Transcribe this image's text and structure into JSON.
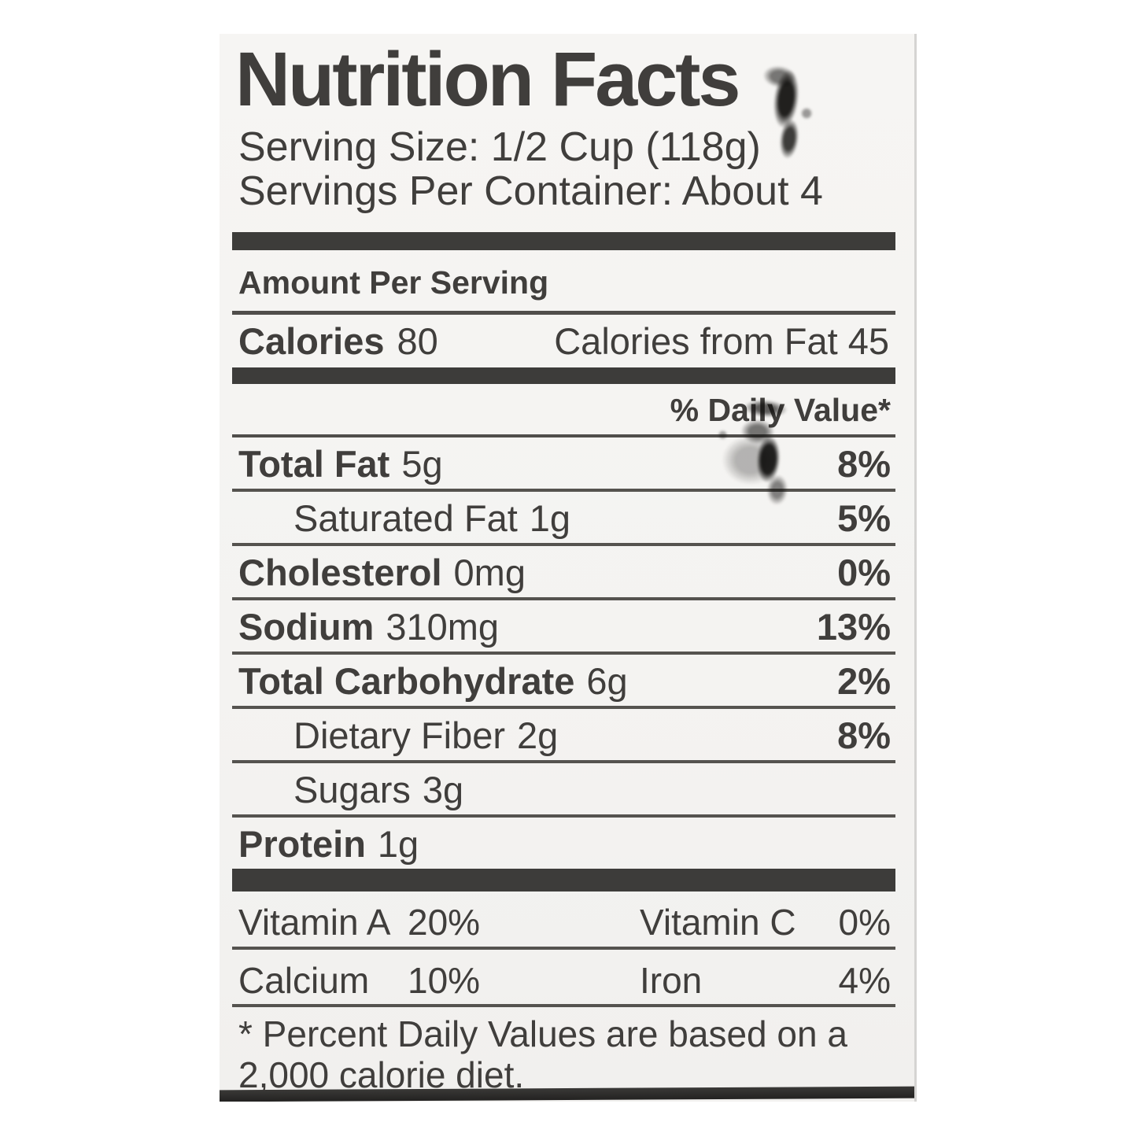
{
  "label": {
    "title": "Nutrition Facts",
    "serving_size": "Serving Size: 1/2 Cup (118g)",
    "servings_per_container": "Servings Per Container: About 4",
    "amount_per_serving": "Amount Per Serving",
    "calories_label": "Calories",
    "calories_value": "80",
    "calories_from_fat": "Calories from Fat 45",
    "daily_value_header": "% Daily Value*",
    "rows": [
      {
        "name": "Total Fat",
        "amount": "5g",
        "dv": "8%"
      },
      {
        "name": "Saturated Fat",
        "amount": "1g",
        "dv": "5%"
      },
      {
        "name": "Cholesterol",
        "amount": "0mg",
        "dv": "0%"
      },
      {
        "name": "Sodium",
        "amount": "310mg",
        "dv": "13%"
      },
      {
        "name": "Total Carbohydrate",
        "amount": "6g",
        "dv": "2%"
      },
      {
        "name": "Dietary Fiber",
        "amount": "2g",
        "dv": "8%"
      },
      {
        "name": "Sugars",
        "amount": "3g",
        "dv": ""
      },
      {
        "name": "Protein",
        "amount": "1g",
        "dv": ""
      }
    ],
    "micronutrients": {
      "row1": {
        "name1": "Vitamin A",
        "value1": "20%",
        "name2": "Vitamin C",
        "value2": "0%"
      },
      "row2": {
        "name1": "Calcium",
        "value1": "10%",
        "name2": "Iron",
        "value2": "4%"
      }
    },
    "footnote_line1": "* Percent Daily Values are based on a",
    "footnote_line2": "2,000 calorie diet."
  },
  "colors": {
    "ink": "#403e3c",
    "divider_bar": "#3d3c3a",
    "rule": "#55534f",
    "label_background": "#f5f4f2",
    "page_background": "#ffffff",
    "edge_shadow": "#d5d4d2",
    "ink_smudge": "#141312"
  }
}
